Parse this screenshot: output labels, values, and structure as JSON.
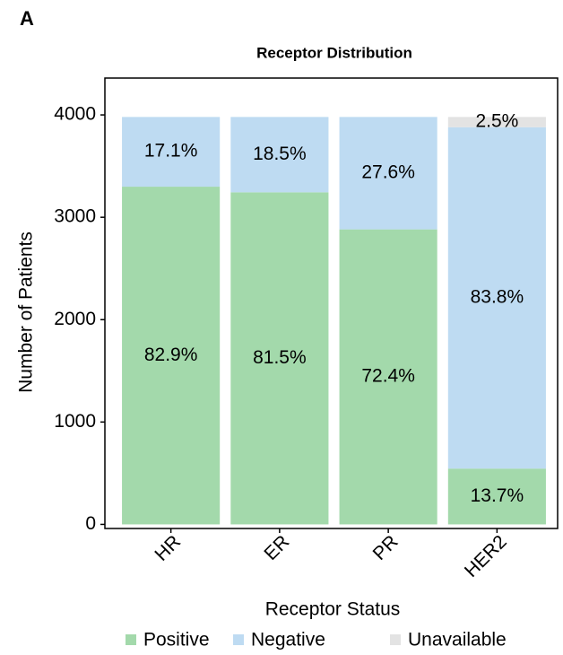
{
  "chart_data": {
    "type": "stacked_bar",
    "panel_label": "A",
    "title": "Receptor Distribution",
    "x_label": "Receptor Status",
    "y_label": "Number of Patients",
    "categories": [
      "HR",
      "ER",
      "PR",
      "HER2"
    ],
    "series": [
      {
        "name": "Positive",
        "color": "#a3d9ab",
        "values": [
          3299,
          3244,
          2882,
          545
        ],
        "value_labels": [
          "82.9%",
          "81.5%",
          "72.4%",
          "13.7%"
        ]
      },
      {
        "name": "Negative",
        "color": "#bedbf2",
        "values": [
          681,
          736,
          1098,
          3335
        ],
        "value_labels": [
          "17.1%",
          "18.5%",
          "27.6%",
          "83.8%"
        ]
      },
      {
        "name": "Unavailable",
        "color": "#e3e3e3",
        "values": [
          null,
          null,
          null,
          100
        ],
        "value_labels": [
          null,
          null,
          null,
          "2.5%"
        ]
      }
    ],
    "ylim": [
      -40,
      4360
    ],
    "yticks": [
      0,
      1000,
      2000,
      3000,
      4000
    ],
    "grid": false
  }
}
